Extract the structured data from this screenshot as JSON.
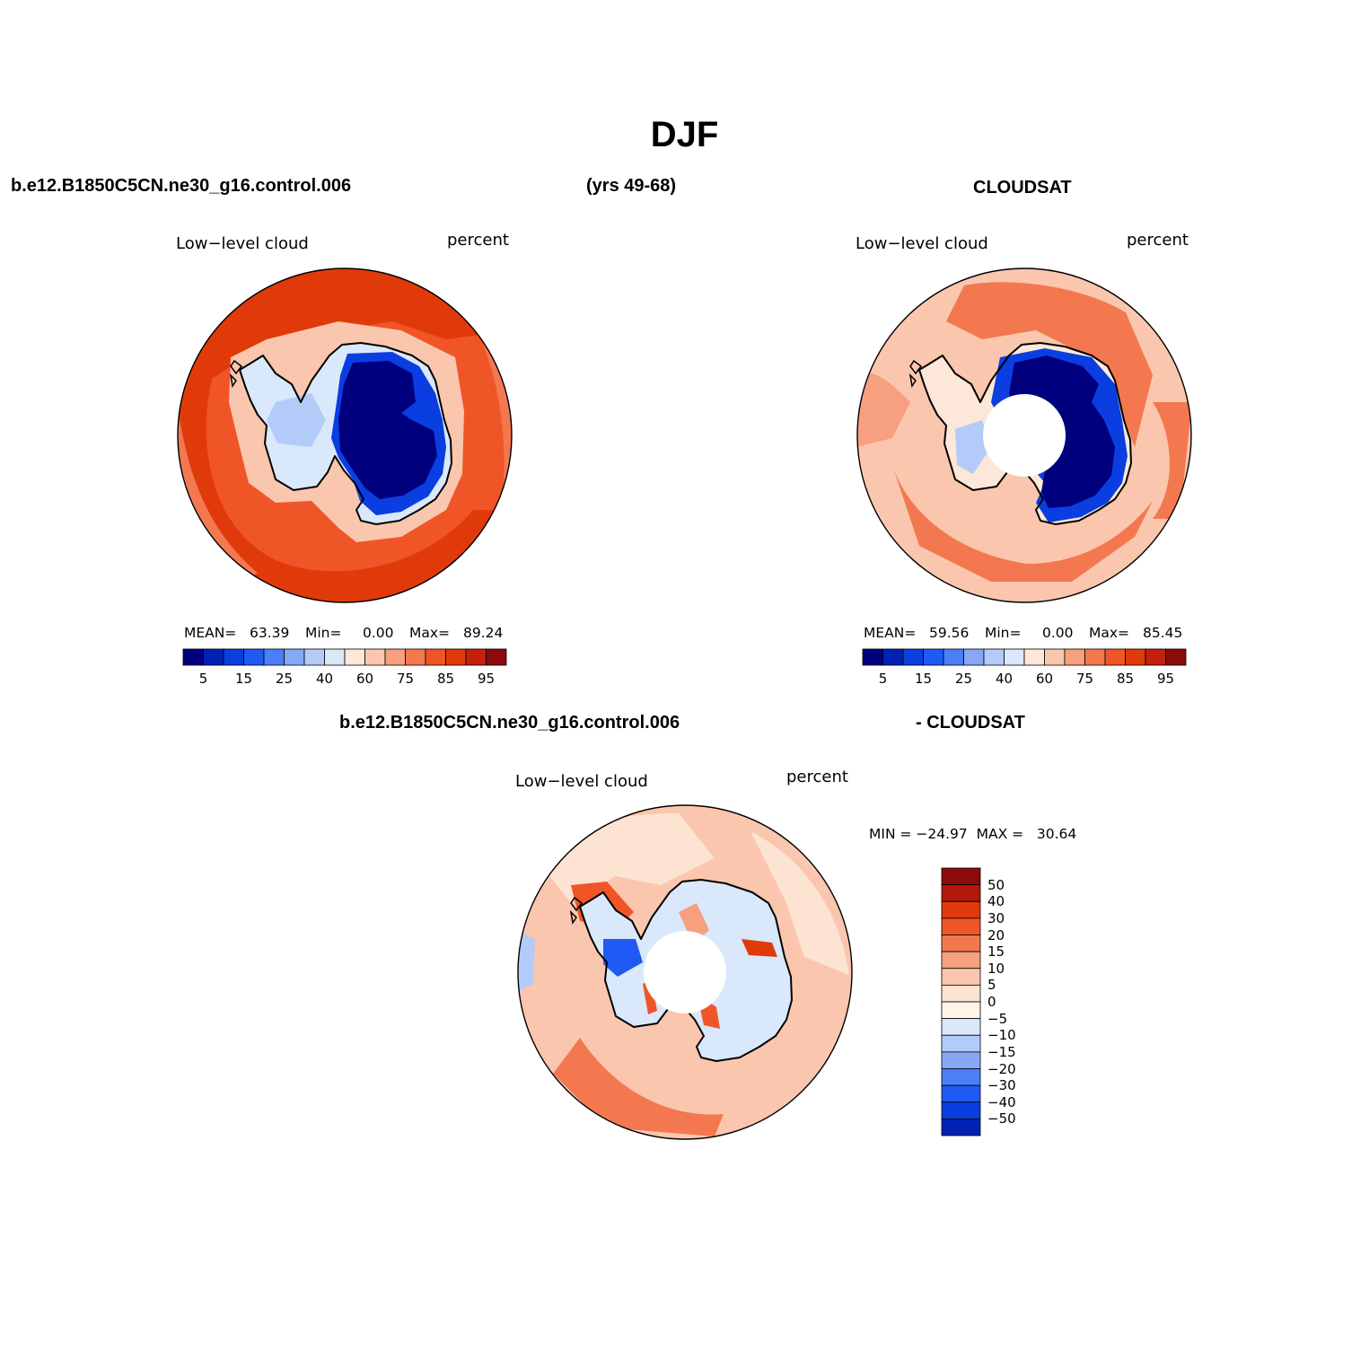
{
  "title": "DJF",
  "header": {
    "case_name": "b.e12.B1850C5CN.ne30_g16.control.006",
    "years": "(yrs 49-68)",
    "obs_name": "CLOUDSAT"
  },
  "diff_header": {
    "case_name": "b.e12.B1850C5CN.ne30_g16.control.006",
    "obs_name": "- CLOUDSAT"
  },
  "colors": {
    "abs_scale": [
      "#00007f",
      "#0022b4",
      "#0a3ee0",
      "#1f5af4",
      "#4a7ff7",
      "#86a8f7",
      "#b3cbf8",
      "#d9e8fb",
      "#fde7d8",
      "#fbc6ae",
      "#f6a07f",
      "#f37850",
      "#f05528",
      "#e03a0b",
      "#c4200b",
      "#8b0b0b"
    ],
    "diff_scale": [
      "#00007f",
      "#0022b4",
      "#0a3ee0",
      "#1f5af4",
      "#4a7ff7",
      "#86a8f7",
      "#b3cbf8",
      "#d9e8fb",
      "#fff3ea",
      "#fde3d2",
      "#fbc6ae",
      "#f6a07f",
      "#f37850",
      "#f05528",
      "#e03a0b",
      "#b2180b",
      "#8b0b0b"
    ]
  },
  "panels": [
    {
      "id": "model",
      "variable": "Low−level cloud",
      "units": "percent",
      "mean_label": "MEAN=",
      "mean": "63.39",
      "min_label": "Min=",
      "min": "0.00",
      "max_label": "Max=",
      "max": "89.24",
      "colorbar_ticks": [
        "5",
        "15",
        "25",
        "40",
        "60",
        "75",
        "85",
        "95"
      ],
      "polar_hole": false
    },
    {
      "id": "obs",
      "variable": "Low−level cloud",
      "units": "percent",
      "mean_label": "MEAN=",
      "mean": "59.56",
      "min_label": "Min=",
      "min": "0.00",
      "max_label": "Max=",
      "max": "85.45",
      "colorbar_ticks": [
        "5",
        "15",
        "25",
        "40",
        "60",
        "75",
        "85",
        "95"
      ],
      "polar_hole": true
    }
  ],
  "diff_panel": {
    "variable": "Low−level cloud",
    "units": "percent",
    "minmax": "MIN = −24.97  MAX =   30.64",
    "colorbar_ticks": [
      "50",
      "40",
      "30",
      "20",
      "15",
      "10",
      "5",
      "0",
      "−5",
      "−10",
      "−15",
      "−20",
      "−30",
      "−40",
      "−50"
    ],
    "polar_hole": true
  }
}
